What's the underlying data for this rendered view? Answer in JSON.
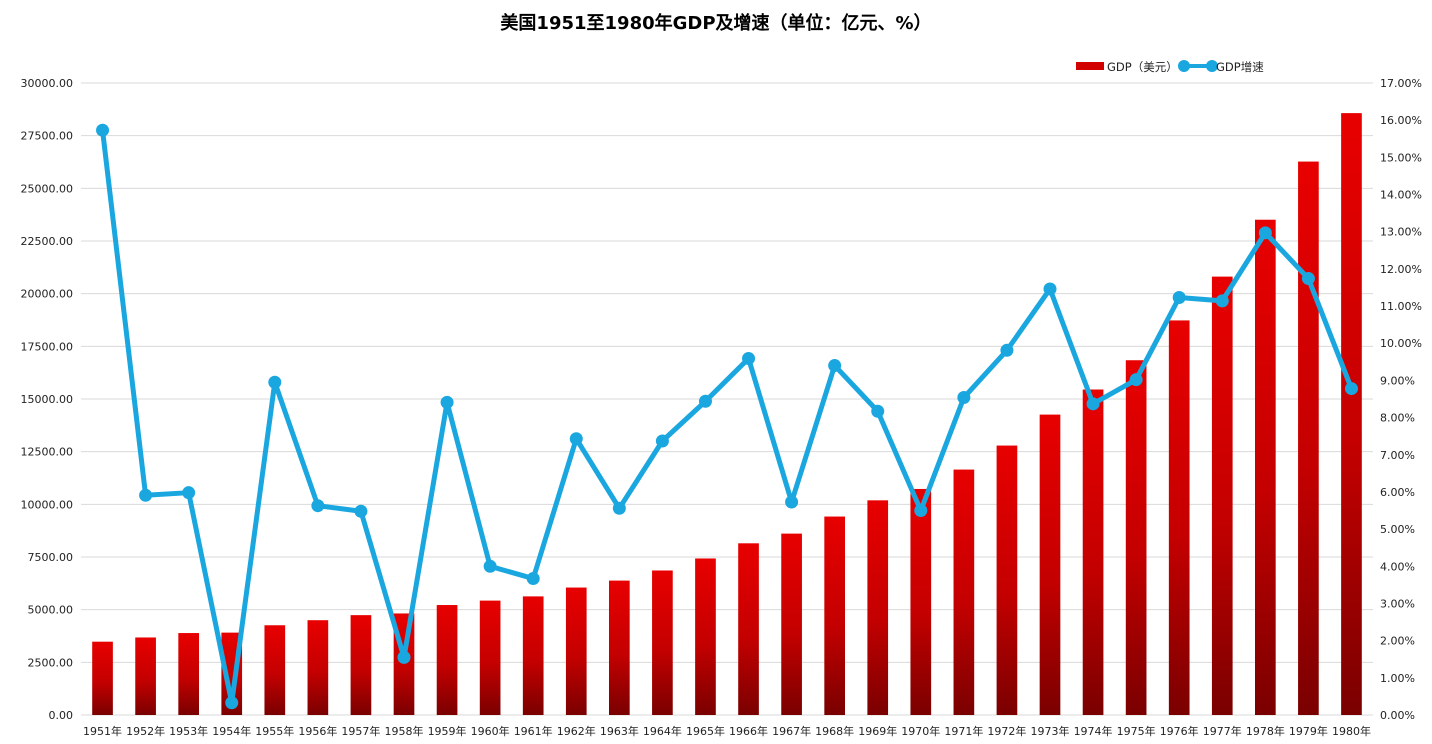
{
  "chart_data": {
    "type": "bar+line",
    "title": "美国1951至1980年GDP及增速（单位：亿元、%）",
    "categories": [
      "1951年",
      "1952年",
      "1953年",
      "1954年",
      "1955年",
      "1956年",
      "1957年",
      "1958年",
      "1959年",
      "1960年",
      "1961年",
      "1962年",
      "1963年",
      "1964年",
      "1965年",
      "1966年",
      "1967年",
      "1968年",
      "1969年",
      "1970年",
      "1971年",
      "1972年",
      "1973年",
      "1974年",
      "1975年",
      "1976年",
      "1977年",
      "1978年",
      "1979年",
      "1980年"
    ],
    "series": [
      {
        "name": "GDP（美元）",
        "type": "bar",
        "axis": "left",
        "color_top": "#e80000",
        "color_bottom": "#7a0000",
        "values": [
          3480,
          3680,
          3890,
          3910,
          4260,
          4500,
          4740,
          4820,
          5220,
          5430,
          5630,
          6050,
          6380,
          6860,
          7430,
          8150,
          8610,
          9420,
          10190,
          10730,
          11650,
          12790,
          14260,
          15450,
          16840,
          18730,
          20810,
          23510,
          26270,
          28570
        ]
      },
      {
        "name": "GDP增速",
        "type": "line",
        "axis": "right",
        "color": "#1aa7e0",
        "values": [
          15.73,
          5.91,
          5.98,
          0.33,
          8.95,
          5.63,
          5.48,
          1.55,
          8.41,
          4.0,
          3.67,
          7.43,
          5.56,
          7.37,
          8.44,
          9.59,
          5.73,
          9.4,
          8.17,
          5.5,
          8.54,
          9.81,
          11.46,
          8.37,
          9.02,
          11.23,
          11.14,
          12.97,
          11.74,
          8.78
        ]
      }
    ],
    "left_axis": {
      "ylim": [
        0,
        30000
      ],
      "ticks": [
        "0.00",
        "2500.00",
        "5000.00",
        "7500.00",
        "10000.00",
        "12500.00",
        "15000.00",
        "17500.00",
        "20000.00",
        "22500.00",
        "25000.00",
        "27500.00",
        "30000.00"
      ]
    },
    "right_axis": {
      "ylim": [
        0,
        17
      ],
      "ticks": [
        "0.00%",
        "1.00%",
        "2.00%",
        "3.00%",
        "4.00%",
        "5.00%",
        "6.00%",
        "7.00%",
        "8.00%",
        "9.00%",
        "10.00%",
        "11.00%",
        "12.00%",
        "13.00%",
        "14.00%",
        "15.00%",
        "16.00%",
        "17.00%"
      ]
    },
    "grid": true,
    "legend_position": "top-right"
  }
}
